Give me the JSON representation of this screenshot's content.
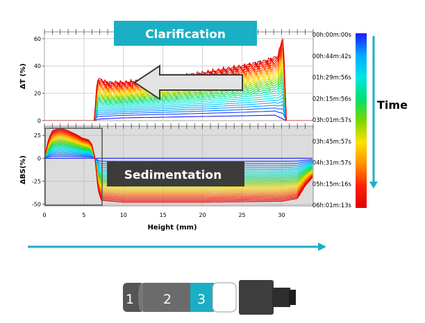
{
  "chart_data": [
    {
      "type": "line",
      "ylabel": "ΔT (%)",
      "xlim": [
        0,
        34
      ],
      "ylim": [
        0,
        65
      ],
      "y_ticks": [
        0,
        20,
        40,
        60
      ],
      "grid": true,
      "annotation": "Clarification",
      "annotation_color": "#1AAFC5",
      "series": [
        {
          "name": "00h:00m:00s",
          "x": [
            0,
            6.4,
            6.7,
            10,
            15,
            20,
            25,
            29.2,
            30.2,
            30.6,
            34
          ],
          "y": [
            0,
            0,
            1,
            2,
            2.5,
            3,
            3.5,
            4,
            1,
            0,
            0
          ]
        },
        {
          "name": "06h:01m:13s",
          "x": [
            0,
            6.3,
            6.7,
            8,
            10,
            15,
            20,
            25,
            28,
            29.5,
            30.2,
            30.6,
            34
          ],
          "y": [
            0,
            0,
            31,
            28,
            28,
            31,
            35,
            40,
            44,
            47,
            62,
            0,
            0
          ]
        }
      ]
    },
    {
      "type": "line",
      "xlabel": "Height (mm)",
      "ylabel": "ΔBS(%)",
      "xlim": [
        0,
        34
      ],
      "ylim": [
        -52,
        35
      ],
      "x_ticks": [
        0,
        5,
        10,
        15,
        20,
        25,
        30
      ],
      "y_ticks": [
        -50,
        -25,
        0,
        25
      ],
      "grid": true,
      "annotation": "Sedimentation",
      "series": [
        {
          "name": "00h:00m:00s",
          "x": [
            0,
            34
          ],
          "y": [
            0,
            0
          ]
        },
        {
          "name": "06h:01m:13s",
          "x": [
            0,
            0.5,
            1,
            2,
            3,
            4,
            4.8,
            5.2,
            5.6,
            6,
            6.4,
            6.8,
            7.2,
            10,
            20,
            30,
            32,
            33,
            34
          ],
          "y": [
            0,
            20,
            30,
            33,
            30,
            26,
            22,
            21,
            20,
            15,
            0,
            -35,
            -46,
            -48,
            -48,
            -47,
            -44,
            -30,
            -20
          ]
        }
      ]
    }
  ],
  "colorbar": {
    "labels": [
      "00h:00m:00s",
      "00h:44m:42s",
      "01h:29m:56s",
      "02h:15m:56s",
      "03h:01m:57s",
      "03h:45m:57s",
      "04h:31m:57s",
      "05h:15m:16s",
      "06h:01m:13s"
    ],
    "colors": [
      "#1a1aff",
      "#00aaff",
      "#00e5e5",
      "#00e070",
      "#7ad600",
      "#ffe000",
      "#ff9000",
      "#ff2000",
      "#e00000"
    ]
  },
  "time_label": "Time",
  "accent_color": "#1AAFC5",
  "vial": {
    "zones": [
      "1",
      "2",
      "3"
    ],
    "colors": {
      "zone1": "#555555",
      "zone2": "#6b6b6b",
      "zone3": "#1AAFC5",
      "cap": "#3d3d3d"
    }
  }
}
